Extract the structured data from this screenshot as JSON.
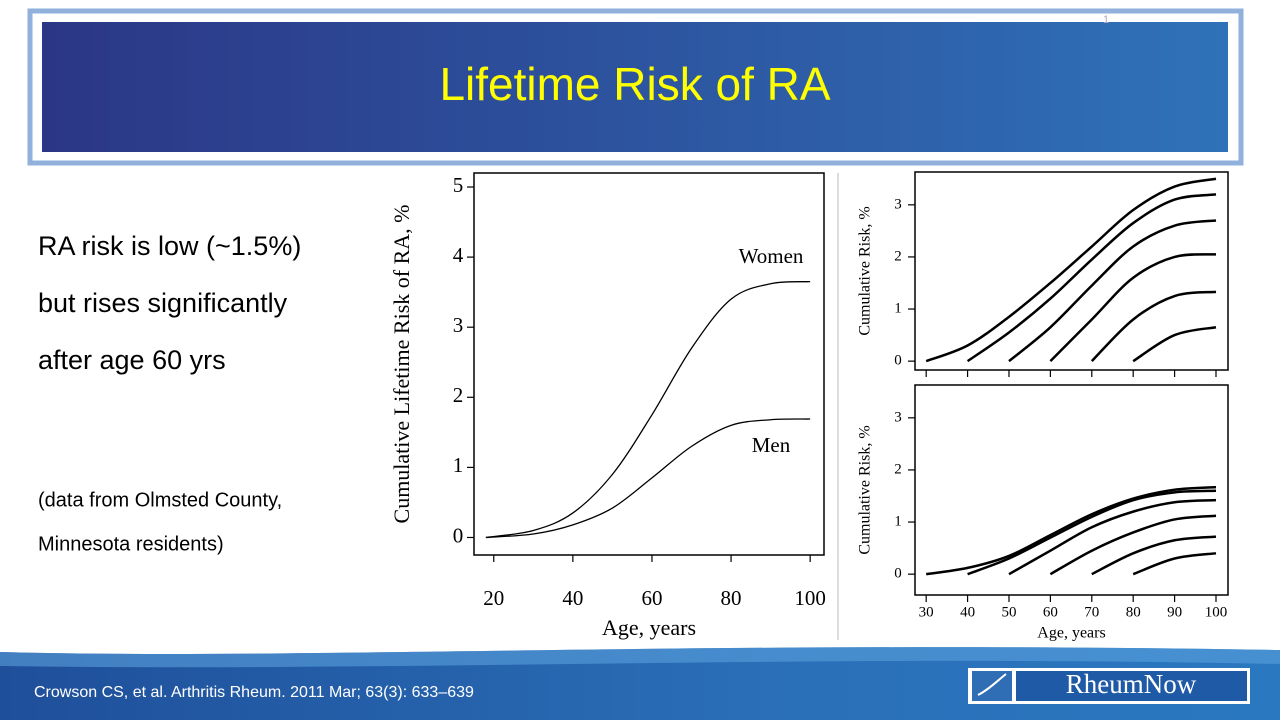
{
  "slide_number": "1",
  "title": "Lifetime Risk of RA",
  "bullets": [
    "RA risk is low (~1.5%)",
    "but rises significantly",
    "after age 60 yrs"
  ],
  "note": [
    "(data from Olmsted County,",
    "Minnesota residents)"
  ],
  "citation": "Crowson CS, et al. Arthritis Rheum. 2011 Mar; 63(3): 633–639",
  "logo": "RheumNow",
  "chart_data": [
    {
      "type": "line",
      "ylabel": "Cumulative Lifetime Risk of RA, %",
      "xlabel": "Age, years",
      "x": [
        18,
        30,
        40,
        50,
        60,
        70,
        80,
        90,
        100
      ],
      "series": [
        {
          "name": "Women",
          "color": "#000000",
          "values": [
            0,
            0.1,
            0.35,
            0.9,
            1.75,
            2.7,
            3.4,
            3.62,
            3.65
          ]
        },
        {
          "name": "Men",
          "color": "#000000",
          "values": [
            0,
            0.05,
            0.18,
            0.42,
            0.85,
            1.3,
            1.6,
            1.68,
            1.69
          ]
        }
      ],
      "xlim": [
        15,
        103.5
      ],
      "ylim": [
        -0.25,
        5.2
      ],
      "xticks": [
        20,
        40,
        60,
        80,
        100
      ],
      "yticks": [
        0,
        1,
        2,
        3,
        4,
        5
      ]
    },
    {
      "type": "line",
      "ylabel": "Cumulative Risk, %",
      "x": [
        30,
        40,
        50,
        60,
        70,
        80,
        90,
        100
      ],
      "series": [
        {
          "color": "#000000",
          "values": [
            0,
            0.3,
            0.85,
            1.5,
            2.2,
            2.9,
            3.35,
            3.5
          ]
        },
        {
          "color": "#000000",
          "values": [
            null,
            0,
            0.55,
            1.2,
            1.95,
            2.65,
            3.1,
            3.2
          ]
        },
        {
          "color": "#000000",
          "values": [
            null,
            null,
            0,
            0.65,
            1.45,
            2.2,
            2.6,
            2.7
          ]
        },
        {
          "color": "#000000",
          "values": [
            null,
            null,
            null,
            0,
            0.8,
            1.6,
            2.0,
            2.05
          ]
        },
        {
          "color": "#000000",
          "values": [
            null,
            null,
            null,
            null,
            0,
            0.8,
            1.25,
            1.33
          ]
        },
        {
          "color": "#000000",
          "values": [
            null,
            null,
            null,
            null,
            null,
            0,
            0.5,
            0.65
          ]
        }
      ],
      "xlim": [
        27.3,
        102.9
      ],
      "ylim": [
        -0.17,
        3.63
      ],
      "xticks": [
        30,
        40,
        50,
        60,
        70,
        80,
        90,
        100
      ],
      "yticks": [
        0,
        1,
        2,
        3
      ]
    },
    {
      "type": "line",
      "ylabel": "Cumulative Risk, %",
      "xlabel": "Age, years",
      "x": [
        30,
        40,
        50,
        60,
        70,
        80,
        90,
        100
      ],
      "series": [
        {
          "color": "#000000",
          "values": [
            0,
            0.12,
            0.35,
            0.75,
            1.15,
            1.45,
            1.62,
            1.67
          ]
        },
        {
          "color": "#000000",
          "values": [
            null,
            0,
            0.3,
            0.7,
            1.1,
            1.42,
            1.57,
            1.6
          ]
        },
        {
          "color": "#000000",
          "values": [
            null,
            null,
            0,
            0.45,
            0.9,
            1.2,
            1.38,
            1.42
          ]
        },
        {
          "color": "#000000",
          "values": [
            null,
            null,
            null,
            0,
            0.45,
            0.8,
            1.05,
            1.12
          ]
        },
        {
          "color": "#000000",
          "values": [
            null,
            null,
            null,
            null,
            0,
            0.4,
            0.65,
            0.72
          ]
        },
        {
          "color": "#000000",
          "values": [
            null,
            null,
            null,
            null,
            null,
            0,
            0.3,
            0.4
          ]
        }
      ],
      "xlim": [
        27.3,
        102.9
      ],
      "ylim": [
        -0.4,
        3.63
      ],
      "xticks": [
        30,
        40,
        50,
        60,
        70,
        80,
        90,
        100
      ],
      "yticks": [
        0,
        1,
        2,
        3
      ]
    }
  ]
}
